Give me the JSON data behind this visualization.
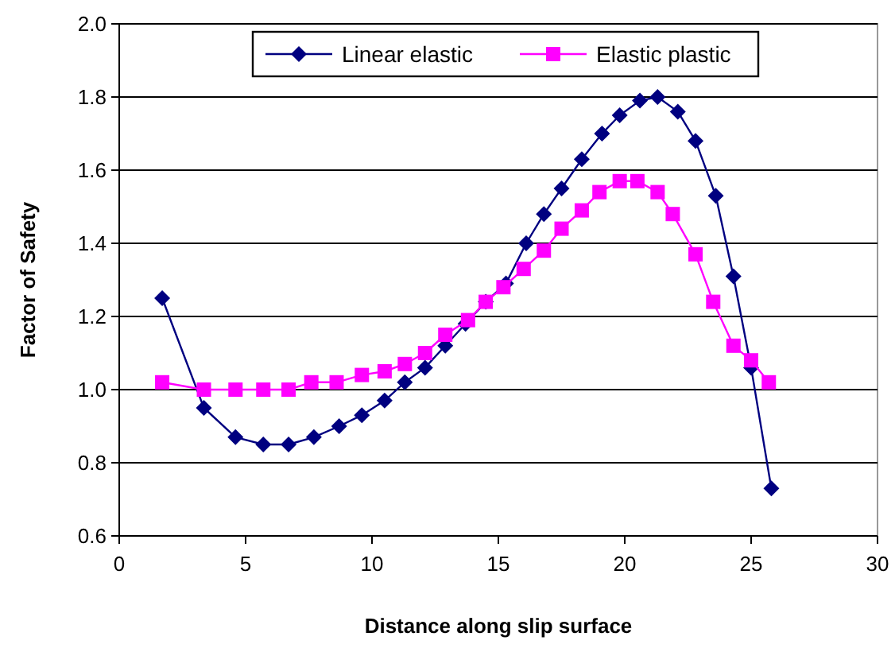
{
  "chart_data": {
    "type": "line",
    "xlabel": "Distance along slip surface",
    "ylabel": "Factor of Safety",
    "xlim": [
      0,
      30
    ],
    "xticks": [
      0,
      5,
      10,
      15,
      20,
      25,
      30
    ],
    "ylim": [
      0.6,
      2.0
    ],
    "yticks": [
      {
        "value": 0.6,
        "label": "0.6"
      },
      {
        "value": 0.8,
        "label": "0.8"
      },
      {
        "value": 1.0,
        "label": "1.0"
      },
      {
        "value": 1.2,
        "label": "1.2"
      },
      {
        "value": 1.4,
        "label": "1.4"
      },
      {
        "value": 1.6,
        "label": "1.6"
      },
      {
        "value": 1.8,
        "label": "1.8"
      },
      {
        "value": 2.0,
        "label": "2.0"
      }
    ],
    "grid": "y",
    "legend": "top right",
    "line_style": "solid",
    "series": [
      {
        "name": "Linear elastic",
        "color": "#000080",
        "marker": "diamond",
        "x": [
          1.7,
          3.35,
          4.6,
          5.7,
          6.7,
          7.7,
          8.7,
          9.6,
          10.5,
          11.3,
          12.1,
          12.9,
          13.7,
          14.5,
          15.3,
          16.1,
          16.8,
          17.5,
          18.3,
          19.1,
          19.8,
          20.6,
          21.3,
          22.1,
          22.8,
          23.6,
          24.3,
          25.0,
          25.8
        ],
        "values": [
          1.25,
          0.95,
          0.87,
          0.85,
          0.85,
          0.87,
          0.9,
          0.93,
          0.97,
          1.02,
          1.06,
          1.12,
          1.18,
          1.24,
          1.29,
          1.4,
          1.48,
          1.55,
          1.63,
          1.7,
          1.75,
          1.79,
          1.8,
          1.76,
          1.68,
          1.53,
          1.31,
          1.06,
          0.73
        ]
      },
      {
        "name": "Elastic plastic",
        "color": "#ff00ff",
        "marker": "square",
        "x": [
          1.7,
          3.35,
          4.6,
          5.7,
          6.7,
          7.6,
          8.6,
          9.6,
          10.5,
          11.3,
          12.1,
          12.9,
          13.8,
          14.5,
          15.2,
          16.0,
          16.8,
          17.5,
          18.3,
          19.0,
          19.8,
          20.5,
          21.3,
          21.9,
          22.8,
          23.5,
          24.3,
          25.0,
          25.7
        ],
        "values": [
          1.02,
          1.0,
          1.0,
          1.0,
          1.0,
          1.02,
          1.02,
          1.04,
          1.05,
          1.07,
          1.1,
          1.15,
          1.19,
          1.24,
          1.28,
          1.33,
          1.38,
          1.44,
          1.49,
          1.54,
          1.57,
          1.57,
          1.54,
          1.48,
          1.37,
          1.24,
          1.12,
          1.08,
          1.02
        ]
      }
    ]
  }
}
